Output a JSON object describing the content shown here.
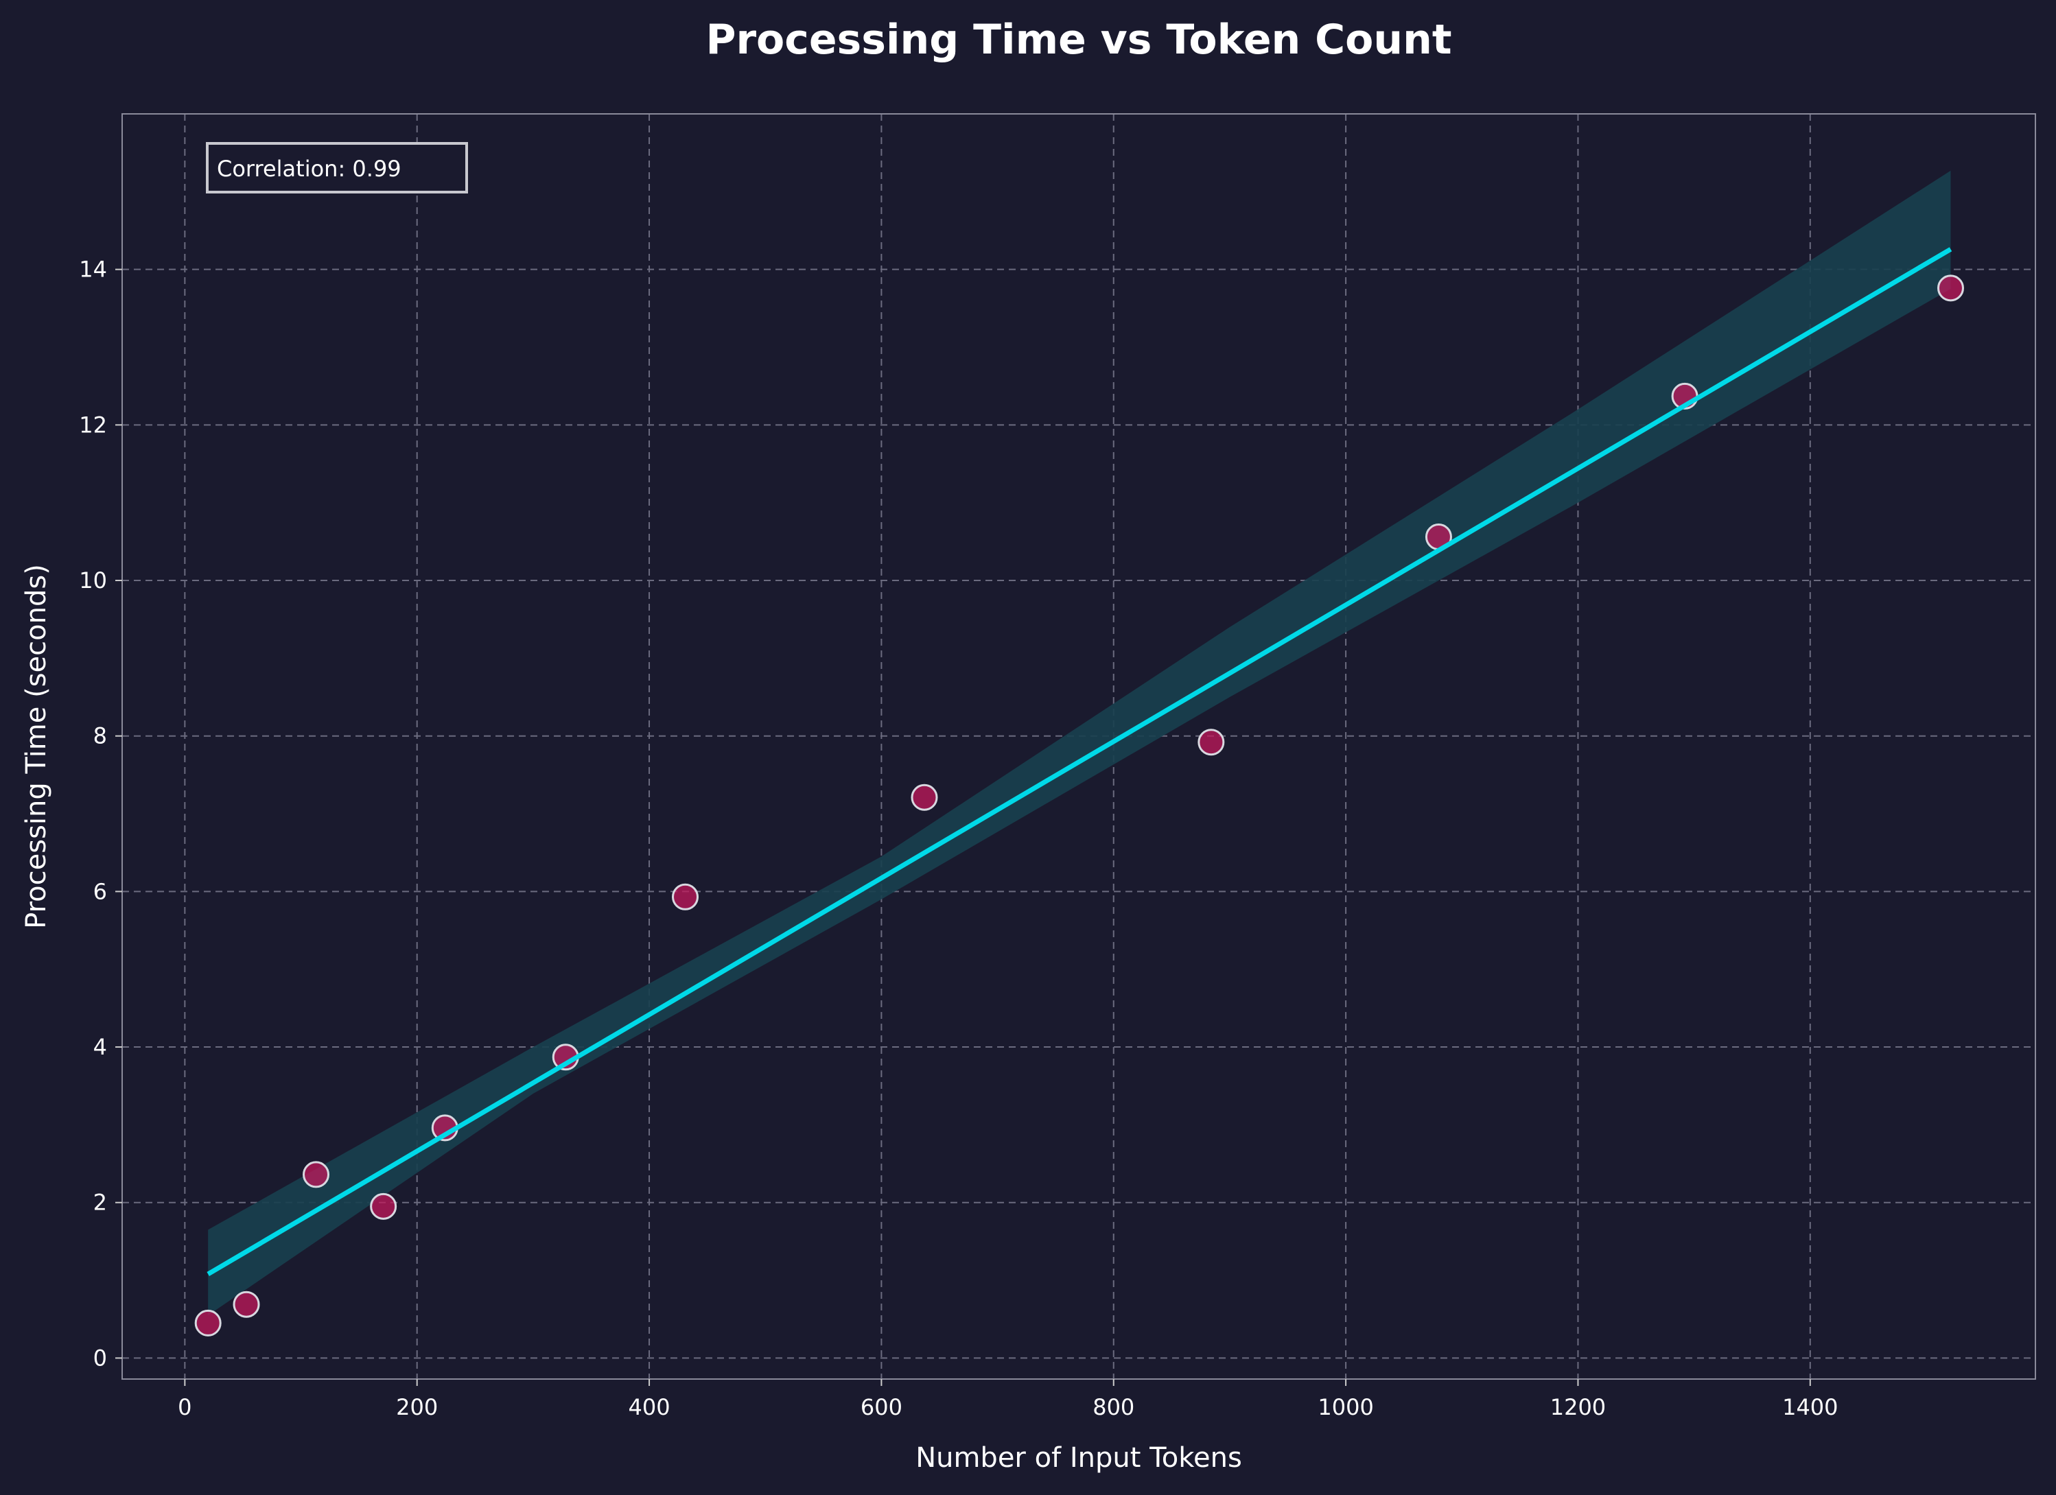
{
  "colors": {
    "background": "#1a1a2e",
    "points": "#c2185b",
    "line": "#00d9e8",
    "band": "#18404f",
    "grid": "#6b6b7f"
  },
  "chart_data": {
    "type": "scatter",
    "title": "Processing Time vs Token Count",
    "xlabel": "Number of Input Tokens",
    "ylabel": "Processing Time (seconds)",
    "xlim": [
      -54,
      1594
    ],
    "ylim": [
      -0.27,
      16.0
    ],
    "grid": true,
    "xticks": [
      0,
      200,
      400,
      600,
      800,
      1000,
      1200,
      1400
    ],
    "yticks": [
      0,
      2,
      4,
      6,
      8,
      10,
      12,
      14
    ],
    "points": [
      {
        "x": 20,
        "y": 0.45
      },
      {
        "x": 53,
        "y": 0.69
      },
      {
        "x": 113,
        "y": 2.36
      },
      {
        "x": 171,
        "y": 1.95
      },
      {
        "x": 224,
        "y": 2.96
      },
      {
        "x": 328,
        "y": 3.87
      },
      {
        "x": 431,
        "y": 5.93
      },
      {
        "x": 637,
        "y": 7.21
      },
      {
        "x": 884,
        "y": 7.92
      },
      {
        "x": 1080,
        "y": 10.56
      },
      {
        "x": 1292,
        "y": 12.37
      },
      {
        "x": 1521,
        "y": 13.76
      }
    ],
    "regression": {
      "x": [
        20,
        1521
      ],
      "y": [
        1.08,
        14.26
      ]
    },
    "confidence_band": [
      {
        "x": 20,
        "lo": 0.55,
        "hi": 1.65
      },
      {
        "x": 300,
        "lo": 3.4,
        "hi": 4.0
      },
      {
        "x": 600,
        "lo": 5.9,
        "hi": 6.45
      },
      {
        "x": 900,
        "lo": 8.5,
        "hi": 9.4
      },
      {
        "x": 1200,
        "lo": 11.0,
        "hi": 12.2
      },
      {
        "x": 1521,
        "lo": 13.75,
        "hi": 15.27
      }
    ],
    "annotation": "Correlation: 0.99",
    "legend": "none"
  }
}
